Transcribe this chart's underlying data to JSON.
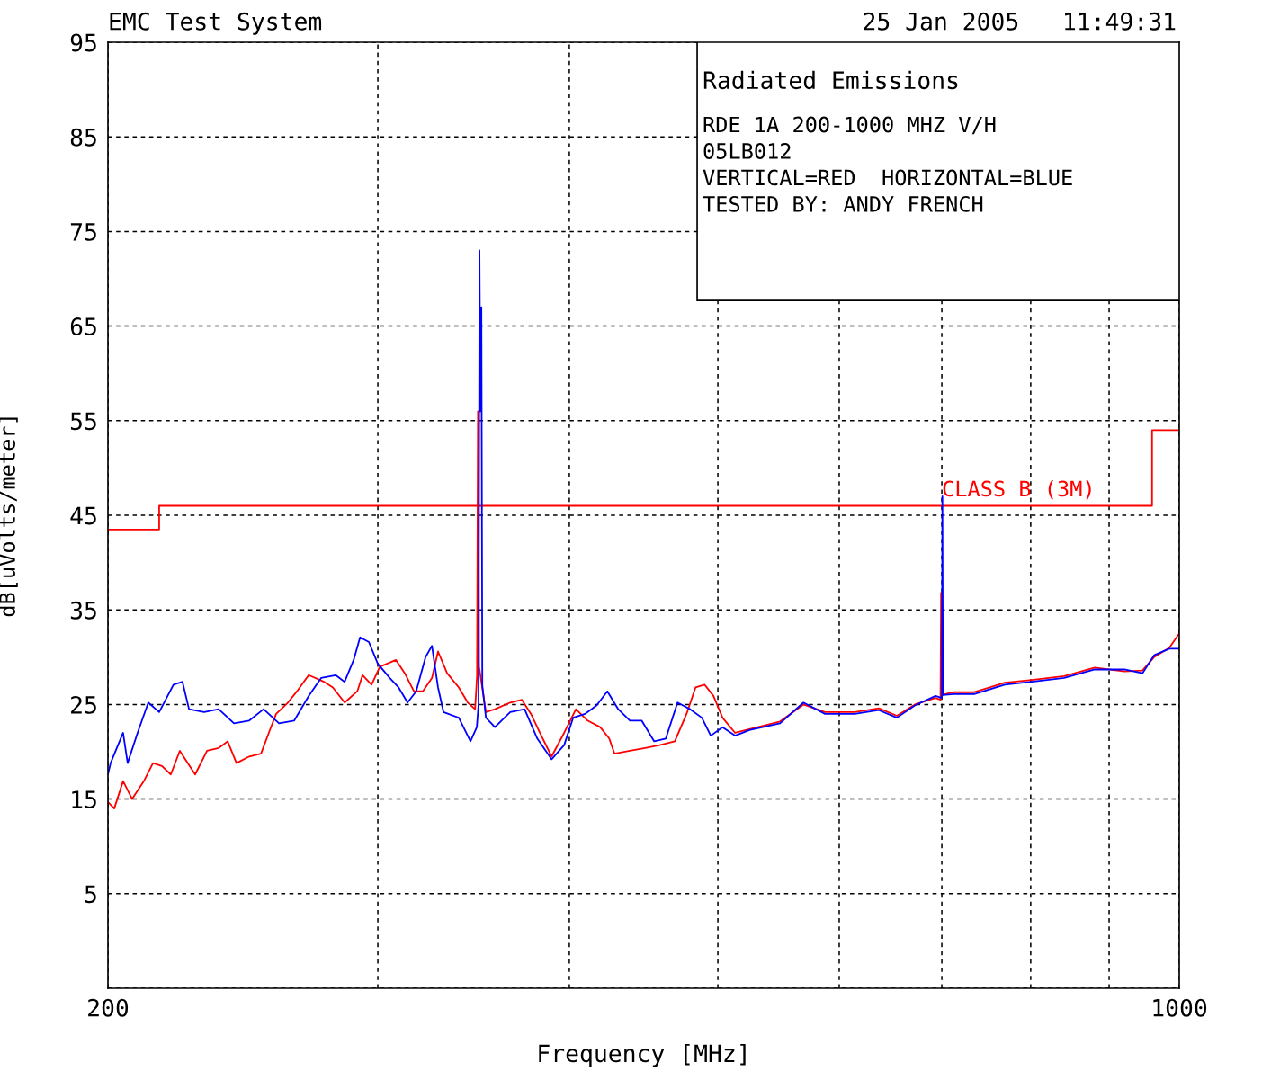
{
  "chart_data": {
    "type": "line",
    "title": "EMC Test System",
    "subtitle": "25 Jan 2005   11:49:31",
    "xlabel": "Frequency [MHz]",
    "ylabel": "dB[uVolts/meter]",
    "log": "x",
    "grid": true,
    "xlim": [
      200,
      1000
    ],
    "xticks": [
      200,
      {
        "value": 300,
        "label": null
      },
      {
        "value": 400,
        "label": null
      },
      {
        "value": 500,
        "label": null
      },
      {
        "value": 600,
        "label": null
      },
      {
        "value": 700,
        "label": null
      },
      {
        "value": 800,
        "label": null
      },
      {
        "value": 900,
        "label": null
      },
      1000
    ],
    "ylim": [
      -5,
      95
    ],
    "yticks": [
      {
        "value": -5,
        "label": null
      },
      5,
      15,
      25,
      35,
      45,
      55,
      65,
      75,
      85,
      95
    ],
    "annotations": [
      "Radiated Emissions",
      "RDE 1A 200-1000 MHZ V/H",
      "05LB012",
      "VERTICAL=RED  HORIZONTAL=BLUE",
      "TESTED BY: ANDY FRENCH",
      {
        "text": "CLASS B (3M)",
        "x": 700,
        "y": 46
      }
    ],
    "series": [
      {
        "color": "#ff0000",
        "x": [
          200,
          216,
          216,
          960,
          960,
          1000
        ],
        "values": [
          43.5,
          43.5,
          46,
          46,
          54,
          54
        ]
      },
      {
        "color": "#ff0000",
        "x": [
          200,
          201.9,
          204.6,
          207.4,
          211.1,
          214.0,
          216.9,
          219.8,
          222.8,
          228.0,
          232.1,
          236.2,
          239.4,
          242.6,
          247.3,
          251.7,
          255.1,
          257.5,
          262.1,
          265.7,
          270.4,
          276.7,
          280.4,
          285.4,
          290.9,
          293.2,
          297.2,
          300.9,
          304.1,
          308.3,
          312.4,
          316.7,
          321.0,
          325.4,
          328.4,
          332.9,
          338.8,
          343.4,
          347.2,
          348.2,
          348.7,
          349.3,
          352.9,
          357.7,
          366.0,
          372.5,
          377.6,
          382.7,
          389.5,
          396.9,
          404.0,
          411.1,
          419.0,
          424.7,
          428.1,
          438.1,
          448.3,
          458.1,
          468.7,
          477.0,
          483.5,
          490.1,
          496.7,
          503.5,
          513.1,
          549.0,
          568.6,
          587.3,
          614.1,
          636.8,
          654.3,
          672.2,
          693.4,
          698.6,
          699.2,
          699.8,
          712.4,
          734.9,
          769.5,
          801.3,
          841.2,
          880.8,
          920.9,
          946.2,
          962.9,
          985.3,
          1000
        ],
        "values": [
          14.7,
          14.0,
          16.9,
          15,
          16.9,
          18.8,
          18.5,
          17.6,
          20.1,
          17.6,
          20.1,
          20.4,
          21.1,
          18.8,
          19.5,
          19.8,
          22.3,
          24,
          25.2,
          26.4,
          28.1,
          27.4,
          26.8,
          25.2,
          26.4,
          28.1,
          27.1,
          29,
          29.3,
          29.7,
          28.3,
          26.4,
          26.4,
          27.8,
          30.6,
          28.3,
          26.8,
          25.2,
          24.5,
          28,
          56,
          29,
          24.2,
          24.5,
          25.2,
          25.5,
          24,
          22,
          19.5,
          22,
          24.5,
          23.3,
          22.6,
          21.4,
          19.8,
          20.1,
          20.4,
          20.7,
          21.1,
          24,
          26.8,
          27.1,
          25.9,
          23.6,
          22,
          23.2,
          25,
          24.2,
          24.2,
          24.6,
          23.8,
          25,
          25.7,
          25.5,
          36.8,
          26,
          26.3,
          26.3,
          27.3,
          27.6,
          28,
          28.9,
          28.5,
          28.6,
          30,
          31,
          32.5
        ]
      },
      {
        "color": "#0000ff",
        "x": [
          200,
          200.8,
          204.6,
          206.0,
          209.1,
          212.5,
          216.0,
          220.7,
          223.7,
          225.9,
          231.1,
          236.2,
          241.7,
          247.3,
          252.7,
          258.6,
          264.6,
          270.4,
          275.5,
          281.6,
          285.4,
          289.3,
          292.1,
          296.0,
          300.0,
          305.4,
          309.5,
          313.7,
          317.8,
          322.3,
          325.4,
          328.4,
          331.1,
          338.8,
          344.8,
          348.1,
          349.0,
          349.5,
          350.0,
          350.5,
          351.0,
          352.9,
          357.7,
          366.0,
          374.0,
          381.2,
          389.5,
          396.9,
          402.3,
          409.5,
          416.7,
          423.5,
          430.5,
          438.1,
          445.9,
          454.4,
          462.4,
          470.6,
          479.6,
          488.1,
          494.7,
          503.5,
          513.1,
          524.3,
          549.0,
          568.6,
          587.3,
          614.1,
          636.8,
          654.3,
          672.2,
          693.4,
          700.0,
          700.6,
          701.2,
          712.4,
          734.9,
          769.5,
          801.3,
          841.2,
          880.8,
          920.9,
          946.2,
          962.9,
          985.3,
          1000
        ],
        "values": [
          17.6,
          18.8,
          22,
          18.8,
          22,
          25.2,
          24.2,
          27.1,
          27.4,
          24.5,
          24.2,
          24.5,
          23,
          23.3,
          24.5,
          23,
          23.3,
          25.9,
          27.8,
          28.1,
          27.4,
          29.7,
          32.1,
          31.6,
          29.3,
          27.8,
          26.8,
          25.2,
          26.4,
          30,
          31.2,
          26.8,
          24.2,
          23.6,
          21.1,
          22.6,
          25,
          73,
          56,
          67,
          27,
          23.6,
          22.6,
          24.2,
          24.5,
          21.4,
          19.2,
          20.7,
          23.6,
          24,
          24.9,
          26.4,
          24.5,
          23.3,
          23.3,
          21.1,
          21.4,
          25.2,
          24.5,
          23.6,
          21.7,
          22.6,
          21.7,
          22.3,
          23,
          25.2,
          24,
          24,
          24.4,
          23.6,
          24.9,
          25.9,
          25.7,
          47,
          26,
          26.1,
          26.1,
          27.1,
          27.4,
          27.8,
          28.7,
          28.7,
          28.3,
          30.2,
          30.9,
          30.9
        ]
      }
    ]
  }
}
